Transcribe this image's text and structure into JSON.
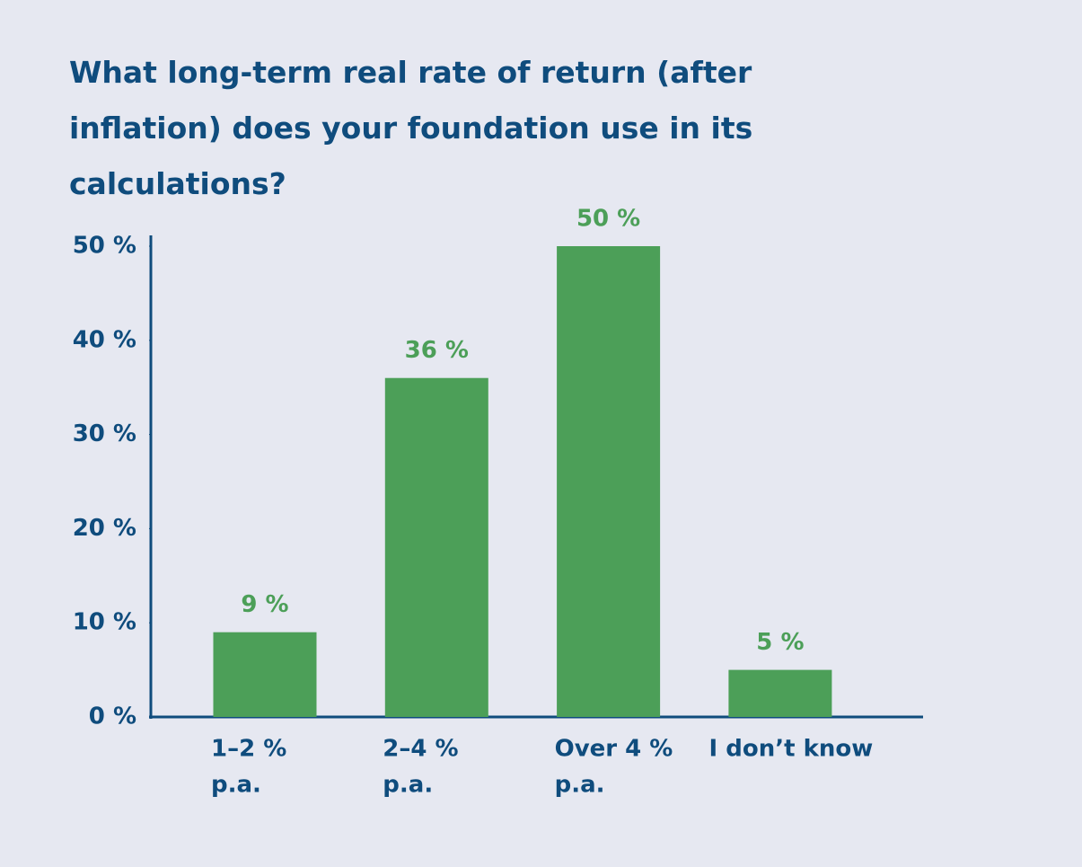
{
  "chart_data": {
    "type": "bar",
    "title": "What long-term real rate of return (after inflation) does your foundation use in its calculations?",
    "categories": [
      [
        "1–2 %",
        "p.a."
      ],
      [
        "2–4 %",
        "p.a."
      ],
      [
        "Over 4 %",
        "p.a."
      ],
      [
        "I don’t know"
      ]
    ],
    "values": [
      9,
      36,
      50,
      5
    ],
    "value_labels": [
      "9 %",
      "36 %",
      "50 %",
      "5 %"
    ],
    "color": "#4c9f58",
    "ylim": [
      0,
      50
    ],
    "yticks": [
      {
        "value": 0,
        "label": "0 %"
      },
      {
        "value": 10,
        "label": "10 %"
      },
      {
        "value": 20,
        "label": "20 %"
      },
      {
        "value": 30,
        "label": "30 %"
      },
      {
        "value": 40,
        "label": "40 %"
      },
      {
        "value": 50,
        "label": "50 %"
      }
    ],
    "grid": false
  }
}
